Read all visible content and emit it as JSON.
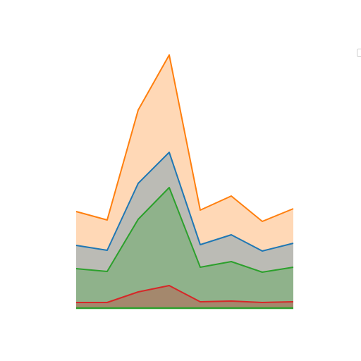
{
  "chart_data": {
    "type": "area",
    "x": [
      0,
      1,
      2,
      3,
      4,
      5,
      6,
      7
    ],
    "xlim": [
      0,
      7
    ],
    "ylim": [
      0,
      400
    ],
    "series": [
      {
        "color": "#ff7f0e",
        "values": [
          137,
          125,
          281,
          359,
          139,
          159,
          123,
          141
        ]
      },
      {
        "color": "#1f77b4",
        "values": [
          89,
          82,
          177,
          221,
          90,
          104,
          81,
          92
        ]
      },
      {
        "color": "#2ca02c",
        "values": [
          56,
          52,
          126,
          171,
          58,
          66,
          51,
          58
        ]
      },
      {
        "color": "#d62728",
        "values": [
          8,
          8,
          23,
          32,
          9,
          10,
          8,
          9
        ]
      }
    ]
  }
}
